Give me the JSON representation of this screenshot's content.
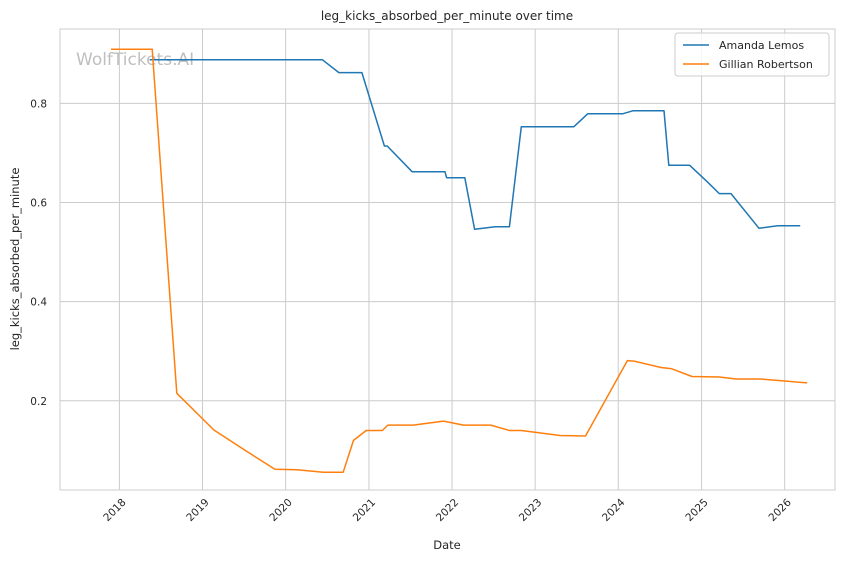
{
  "chart_data": {
    "type": "line",
    "title": "leg_kicks_absorbed_per_minute over time",
    "xlabel": "Date",
    "ylabel": "leg_kicks_absorbed_per_minute",
    "watermark": "WolfTickets.AI",
    "xlim": [
      "2017-04-15",
      "2026-08-10"
    ],
    "ylim": [
      0.02,
      0.95
    ],
    "x_ticks": [
      "2018",
      "2019",
      "2020",
      "2021",
      "2022",
      "2023",
      "2024",
      "2025",
      "2026"
    ],
    "y_ticks": [
      "0.2",
      "0.4",
      "0.6",
      "0.8"
    ],
    "y_tick_values": [
      0.2,
      0.4,
      0.6,
      0.8
    ],
    "grid": true,
    "legend_position": "upper right",
    "series": [
      {
        "name": "Amanda Lemos",
        "color": "#1f77b4",
        "points": [
          [
            "2018-05-15",
            0.888
          ],
          [
            "2020-06-10",
            0.888
          ],
          [
            "2020-08-22",
            0.862
          ],
          [
            "2020-12-01",
            0.862
          ],
          [
            "2021-03-10",
            0.714
          ],
          [
            "2021-03-22",
            0.714
          ],
          [
            "2021-07-10",
            0.662
          ],
          [
            "2021-12-01",
            0.662
          ],
          [
            "2021-12-08",
            0.65
          ],
          [
            "2022-02-26",
            0.65
          ],
          [
            "2022-04-10",
            0.546
          ],
          [
            "2022-07-10",
            0.551
          ],
          [
            "2022-09-10",
            0.551
          ],
          [
            "2022-11-01",
            0.753
          ],
          [
            "2023-06-20",
            0.753
          ],
          [
            "2023-08-20",
            0.779
          ],
          [
            "2024-01-20",
            0.779
          ],
          [
            "2024-03-05",
            0.785
          ],
          [
            "2024-07-20",
            0.785
          ],
          [
            "2024-08-10",
            0.675
          ],
          [
            "2024-11-10",
            0.675
          ],
          [
            "2025-01-30",
            0.64
          ],
          [
            "2025-03-20",
            0.618
          ],
          [
            "2025-05-10",
            0.618
          ],
          [
            "2025-09-10",
            0.548
          ],
          [
            "2025-12-01",
            0.553
          ],
          [
            "2026-03-10",
            0.553
          ]
        ]
      },
      {
        "name": "Gillian Robertson",
        "color": "#ff7f0e",
        "points": [
          [
            "2017-11-25",
            0.909
          ],
          [
            "2018-05-25",
            0.909
          ],
          [
            "2018-09-10",
            0.215
          ],
          [
            "2019-02-20",
            0.141
          ],
          [
            "2019-07-10",
            0.099
          ],
          [
            "2019-11-15",
            0.062
          ],
          [
            "2020-02-20",
            0.061
          ],
          [
            "2020-06-15",
            0.056
          ],
          [
            "2020-09-10",
            0.056
          ],
          [
            "2020-10-25",
            0.12
          ],
          [
            "2020-12-20",
            0.14
          ],
          [
            "2021-03-01",
            0.14
          ],
          [
            "2021-03-25",
            0.151
          ],
          [
            "2021-07-15",
            0.151
          ],
          [
            "2021-11-25",
            0.159
          ],
          [
            "2022-02-20",
            0.151
          ],
          [
            "2022-06-20",
            0.151
          ],
          [
            "2022-09-10",
            0.14
          ],
          [
            "2022-11-01",
            0.14
          ],
          [
            "2023-04-20",
            0.13
          ],
          [
            "2023-08-10",
            0.129
          ],
          [
            "2024-02-10",
            0.281
          ],
          [
            "2024-03-10",
            0.28
          ],
          [
            "2024-07-10",
            0.267
          ],
          [
            "2024-08-20",
            0.265
          ],
          [
            "2024-11-20",
            0.249
          ],
          [
            "2025-03-20",
            0.248
          ],
          [
            "2025-06-01",
            0.244
          ],
          [
            "2025-09-20",
            0.244
          ],
          [
            "2026-01-20",
            0.239
          ],
          [
            "2026-04-10",
            0.236
          ]
        ]
      }
    ]
  }
}
